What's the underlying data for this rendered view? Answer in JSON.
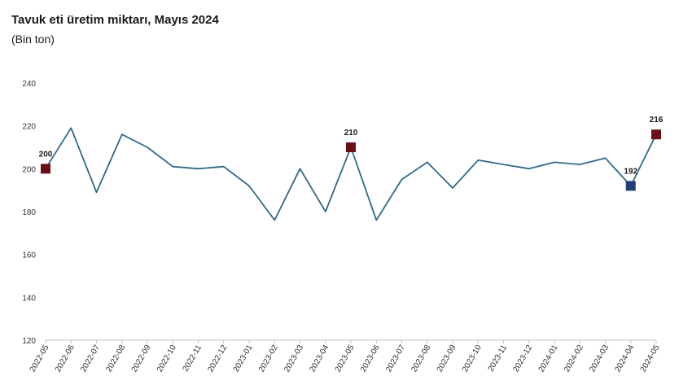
{
  "title": "Tavuk eti üretim miktarı, Mayıs 2024",
  "subtitle": "(Bin ton)",
  "chart_data": {
    "type": "line",
    "title": "Tavuk eti üretim miktarı, Mayıs 2024",
    "subtitle": "(Bin ton)",
    "xlabel": "",
    "ylabel": "",
    "ylim": [
      120,
      240
    ],
    "yticks": [
      120,
      140,
      160,
      180,
      200,
      220,
      240
    ],
    "grid": false,
    "categories": [
      "2022-05",
      "2022-06",
      "2022-07",
      "2022-08",
      "2022-09",
      "2022-10",
      "2022-11",
      "2022-12",
      "2023-01",
      "2023-02",
      "2023-03",
      "2023-04",
      "2023-05",
      "2023-06",
      "2023-07",
      "2023-08",
      "2023-09",
      "2023-10",
      "2023-11",
      "2023-12",
      "2024-01",
      "2024-02",
      "2024-03",
      "2024-04",
      "2024-05"
    ],
    "series": [
      {
        "values": [
          200,
          219,
          189,
          216,
          210,
          201,
          200,
          201,
          192,
          176,
          200,
          180,
          210,
          176,
          195,
          203,
          191,
          204,
          202,
          200,
          203,
          202,
          205,
          192,
          216
        ],
        "color": "#2e6a8a"
      }
    ],
    "markers": [
      {
        "index": 0,
        "label": "200",
        "color": "#6b0f16"
      },
      {
        "index": 12,
        "label": "210",
        "color": "#6b0f16"
      },
      {
        "index": 23,
        "label": "192",
        "color": "#1f3f7a"
      },
      {
        "index": 24,
        "label": "216",
        "color": "#6b0f16"
      }
    ]
  }
}
